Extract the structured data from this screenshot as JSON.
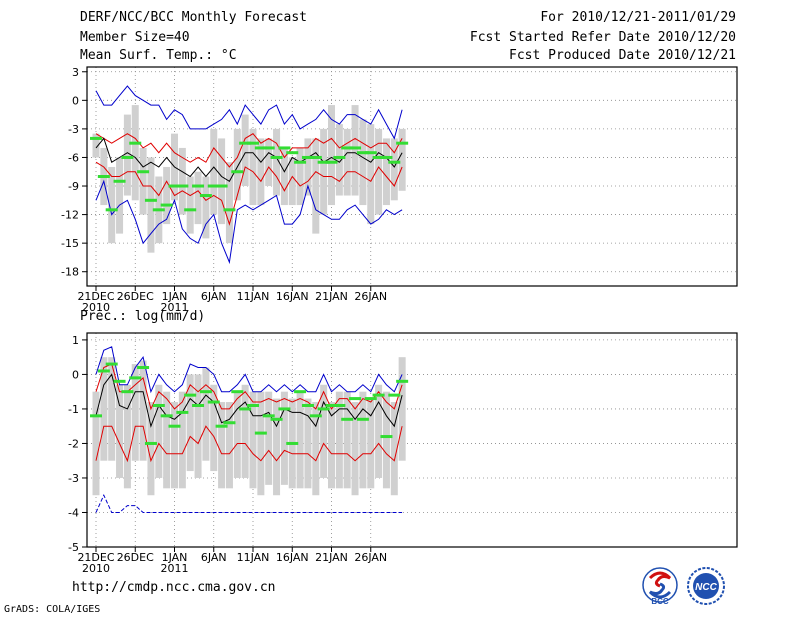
{
  "header": {
    "title": "DERF/NCC/BCC Monthly Forecast",
    "member": "Member Size=40",
    "variable": "Mean Surf. Temp.: °C",
    "period": "For 2010/12/21-2011/01/29",
    "started": "Fcst Started Refer Date 2010/12/20",
    "produced": "Fcst Produced Date 2010/12/21"
  },
  "footer": {
    "url": "http://cmdp.ncc.cma.gov.cn",
    "credit": "GrADS: COLA/IGES",
    "logo_bcc": "BCC",
    "logo_ncc": "NCC"
  },
  "colors": {
    "box": "#d0d0d0",
    "mean": "#000000",
    "envelope_red": "#e00000",
    "envelope_blue": "#0000cc",
    "marker": "#33dd33",
    "grid": "#888888"
  },
  "chart_data": [
    {
      "type": "box-line",
      "title": "Mean Surf. Temp.: °C",
      "xlabel": "",
      "ylabel": "",
      "ylim": [
        -19.5,
        3.5
      ],
      "yticks": [
        3,
        0,
        -3,
        -6,
        -9,
        -12,
        -15,
        -18
      ],
      "xtick_days": [
        1,
        6,
        11,
        16,
        21,
        26,
        31,
        36
      ],
      "xtick_labels": [
        "21DEC",
        "26DEC",
        "1JAN",
        "6JAN",
        "11JAN",
        "16JAN",
        "21JAN",
        "26JAN"
      ],
      "xtick_sublabels": [
        "2010",
        "",
        "2011",
        "",
        "",
        "",
        "",
        ""
      ],
      "days": 40,
      "series": [
        {
          "name": "max",
          "values": [
            1,
            -0.5,
            -0.5,
            0.5,
            1.5,
            0.5,
            0,
            -0.5,
            -0.5,
            -2,
            -1,
            -1.5,
            -3,
            -3,
            -3,
            -2.5,
            -2,
            -1,
            -2.5,
            -0.5,
            -1.5,
            -2.5,
            -1,
            -0.5,
            -2.5,
            -1.5,
            -3,
            -2.5,
            -2,
            -1,
            -2,
            -2.5,
            -1.5,
            -1.5,
            -2,
            -2.5,
            -1,
            -2.5,
            -4,
            -1
          ]
        },
        {
          "name": "upper",
          "values": [
            -3.5,
            -4,
            -4.5,
            -4,
            -3.5,
            -4,
            -5,
            -4.5,
            -5.5,
            -4.5,
            -5.5,
            -6,
            -6.5,
            -6,
            -6.5,
            -5,
            -6,
            -7,
            -6,
            -4,
            -3.5,
            -4.5,
            -4,
            -4.5,
            -6,
            -5,
            -5,
            -5,
            -4,
            -4.5,
            -4,
            -5,
            -4.5,
            -4,
            -4.5,
            -5,
            -4.5,
            -4.5,
            -5.5,
            -4
          ]
        },
        {
          "name": "mean",
          "values": [
            -5,
            -4,
            -6.5,
            -6,
            -5.5,
            -6,
            -7,
            -6.5,
            -7,
            -6,
            -7,
            -7.5,
            -8,
            -7,
            -8,
            -7,
            -8,
            -8.5,
            -7,
            -5.5,
            -5.5,
            -6.5,
            -5.5,
            -6,
            -7.5,
            -6,
            -6.5,
            -6,
            -5.5,
            -6.5,
            -6,
            -6.5,
            -5.5,
            -5.5,
            -6,
            -6.5,
            -5.5,
            -6,
            -7,
            -5.5
          ]
        },
        {
          "name": "lower",
          "values": [
            -6.5,
            -7,
            -8,
            -8,
            -7.5,
            -7.5,
            -9,
            -9,
            -10,
            -8.5,
            -10,
            -9.5,
            -10,
            -9.5,
            -10.5,
            -10,
            -10.5,
            -13,
            -10,
            -7,
            -7.5,
            -8.5,
            -7,
            -8,
            -9.5,
            -8,
            -9,
            -8.5,
            -7.5,
            -8,
            -8,
            -8.5,
            -7.5,
            -7.5,
            -8,
            -8.5,
            -7,
            -8,
            -9,
            -7
          ]
        },
        {
          "name": "min",
          "values": [
            -10.5,
            -8.5,
            -12,
            -11,
            -10.5,
            -12.5,
            -15,
            -14,
            -13,
            -12.5,
            -10.5,
            -13.5,
            -14.5,
            -15,
            -13,
            -12,
            -15,
            -17,
            -11.5,
            -11,
            -11.5,
            -11,
            -10.5,
            -10,
            -13,
            -13,
            -12,
            -9,
            -11.5,
            -12,
            -12.5,
            -12.5,
            -11.5,
            -11,
            -12,
            -13,
            -12.5,
            -11.5,
            -12,
            -11.5
          ]
        },
        {
          "name": "box_high",
          "values": [
            -3.5,
            -5,
            -7,
            -6,
            -1.5,
            -0.5,
            -5,
            -6,
            -8,
            -7,
            -3.5,
            -5,
            -8,
            -7.5,
            -8,
            -3,
            -4,
            -6.5,
            -3,
            -1.5,
            -3,
            -4,
            -4,
            -3,
            -5,
            -6,
            -5,
            -4,
            -4,
            -3,
            -0.5,
            -2.5,
            -3,
            -0.5,
            -2,
            -2.5,
            -3,
            -4,
            -4,
            -3
          ]
        },
        {
          "name": "box_low",
          "values": [
            -6,
            -11,
            -15,
            -14,
            -10,
            -10.5,
            -12,
            -16,
            -15,
            -13,
            -10.5,
            -12,
            -14,
            -13,
            -14.5,
            -12,
            -13,
            -15,
            -10.5,
            -9,
            -11,
            -11,
            -9,
            -10,
            -11,
            -11,
            -11,
            -10,
            -14,
            -12,
            -11,
            -10,
            -10,
            -10,
            -11,
            -13,
            -12,
            -11,
            -10.5,
            -9.5
          ]
        },
        {
          "name": "marker",
          "values": [
            -4,
            -8,
            -11.5,
            -8.5,
            -6,
            -4.5,
            -7.5,
            -10.5,
            -11.5,
            -11,
            -9,
            -9,
            -11.5,
            -9,
            -10,
            -9,
            -9,
            -11.5,
            -7.5,
            -4.5,
            -4.5,
            -5,
            -5,
            -6,
            -5,
            -5.5,
            -6.5,
            -6,
            -6,
            -6.5,
            -6.5,
            -6,
            -5,
            -5,
            -5.5,
            -5.5,
            -6,
            -6,
            -6.5,
            -4.5
          ]
        }
      ]
    },
    {
      "type": "box-line",
      "title": "Prec.: log(mm/d)",
      "xlabel": "",
      "ylabel": "",
      "ylim": [
        -5,
        1.2
      ],
      "yticks": [
        1,
        0,
        -1,
        -2,
        -3,
        -4,
        -5
      ],
      "xtick_days": [
        1,
        6,
        11,
        16,
        21,
        26,
        31,
        36
      ],
      "xtick_labels": [
        "21DEC",
        "26DEC",
        "1JAN",
        "6JAN",
        "11JAN",
        "16JAN",
        "21JAN",
        "26JAN"
      ],
      "xtick_sublabels": [
        "2010",
        "",
        "2011",
        "",
        "",
        "",
        "",
        ""
      ],
      "days": 40,
      "series": [
        {
          "name": "max",
          "values": [
            0,
            0.7,
            0.8,
            -0.3,
            -0.3,
            0.2,
            0.5,
            -0.5,
            0,
            -0.3,
            -0.5,
            -0.3,
            0.3,
            0.2,
            0.2,
            0,
            -0.5,
            -0.5,
            -0.3,
            0,
            -0.5,
            -0.5,
            -0.3,
            -0.5,
            -0.3,
            -0.5,
            -0.3,
            -0.5,
            -0.5,
            0,
            -0.5,
            -0.3,
            -0.5,
            -0.5,
            -0.3,
            -0.5,
            0,
            -0.3,
            -0.5,
            0
          ]
        },
        {
          "name": "upper",
          "values": [
            -0.5,
            0.2,
            0.3,
            -0.5,
            -0.5,
            -0.3,
            -0.1,
            -1,
            -0.5,
            -0.7,
            -1,
            -0.8,
            -0.3,
            -0.5,
            -0.3,
            -0.5,
            -1,
            -1,
            -0.7,
            -0.5,
            -0.8,
            -0.8,
            -0.7,
            -0.8,
            -0.7,
            -0.8,
            -0.7,
            -0.8,
            -1,
            -0.5,
            -1,
            -0.7,
            -0.7,
            -1,
            -0.7,
            -0.8,
            -0.5,
            -0.8,
            -1,
            -0.3
          ]
        },
        {
          "name": "mean",
          "values": [
            -1.2,
            -0.3,
            0,
            -0.9,
            -1,
            -0.5,
            -0.5,
            -1.5,
            -0.9,
            -1.2,
            -1.3,
            -1.1,
            -0.7,
            -0.9,
            -0.6,
            -0.8,
            -1.4,
            -1.3,
            -1,
            -0.8,
            -1.2,
            -1.2,
            -1.1,
            -1.5,
            -1,
            -1.1,
            -1.1,
            -1.2,
            -1.5,
            -0.8,
            -1.2,
            -1,
            -1,
            -1.3,
            -1,
            -1.2,
            -0.8,
            -1.2,
            -1.5,
            -0.6
          ]
        },
        {
          "name": "lower",
          "values": [
            -2.5,
            -1.5,
            -1.5,
            -2,
            -2.5,
            -1.5,
            -1.5,
            -2.5,
            -2,
            -2.3,
            -2.3,
            -2.3,
            -1.8,
            -2,
            -1.5,
            -1.8,
            -2.3,
            -2.3,
            -2,
            -2,
            -2.3,
            -2.5,
            -2.2,
            -2.5,
            -2.2,
            -2.3,
            -2.3,
            -2.3,
            -2.5,
            -2,
            -2.3,
            -2.3,
            -2.3,
            -2.5,
            -2.3,
            -2.3,
            -2,
            -2.3,
            -2.5,
            -1.5
          ]
        },
        {
          "name": "min",
          "values": [
            -4,
            -3.5,
            -4,
            -4,
            -3.8,
            -3.8,
            -4,
            -4,
            -4,
            -4,
            -4,
            -4,
            -4,
            -4,
            -4,
            -4,
            -4,
            -4,
            -4,
            -4,
            -4,
            -4,
            -4,
            -4,
            -4,
            -4,
            -4,
            -4,
            -4,
            -4,
            -4,
            -4,
            -4,
            -4,
            -4,
            -4,
            -4,
            -4,
            -4,
            -4
          ]
        },
        {
          "name": "box_high",
          "values": [
            -0.5,
            0.5,
            0.5,
            -0.3,
            -0.3,
            0.3,
            0.4,
            -0.8,
            -0.3,
            -0.5,
            -0.8,
            -0.5,
            0,
            0,
            0.2,
            -0.3,
            -0.8,
            -0.8,
            -0.5,
            -0.3,
            -0.5,
            -0.5,
            -0.5,
            -0.7,
            -0.5,
            -0.7,
            -0.5,
            -0.7,
            -0.8,
            -0.3,
            -0.8,
            -0.5,
            -0.5,
            -0.8,
            -0.5,
            -0.7,
            -0.3,
            -0.5,
            -0.8,
            0.5
          ]
        },
        {
          "name": "box_low",
          "values": [
            -3.5,
            -2.5,
            -2.5,
            -3,
            -3.3,
            -2.5,
            -2.5,
            -3.5,
            -3,
            -3.3,
            -3.3,
            -3.3,
            -2.8,
            -3,
            -2.5,
            -2.8,
            -3.3,
            -3.3,
            -3,
            -3,
            -3.3,
            -3.5,
            -3.2,
            -3.5,
            -3.2,
            -3.3,
            -3.3,
            -3.3,
            -3.5,
            -3,
            -3.3,
            -3.3,
            -3.3,
            -3.5,
            -3.3,
            -3.3,
            -3,
            -3.3,
            -3.5,
            -2.5
          ]
        },
        {
          "name": "marker",
          "values": [
            -1.2,
            0.1,
            0.3,
            -0.2,
            -0.5,
            -0.1,
            0.2,
            -2,
            -0.9,
            -1.2,
            -1.5,
            -1.1,
            -0.6,
            -0.9,
            -0.5,
            -0.8,
            -1.5,
            -1.4,
            -0.5,
            -1,
            -0.9,
            -1.7,
            -1.2,
            -1.3,
            -1,
            -2,
            -0.5,
            -0.9,
            -1.2,
            -1,
            -0.9,
            -0.9,
            -1.3,
            -0.7,
            -1.3,
            -0.7,
            -0.6,
            -1.8,
            -0.6,
            -0.2
          ]
        }
      ]
    }
  ]
}
